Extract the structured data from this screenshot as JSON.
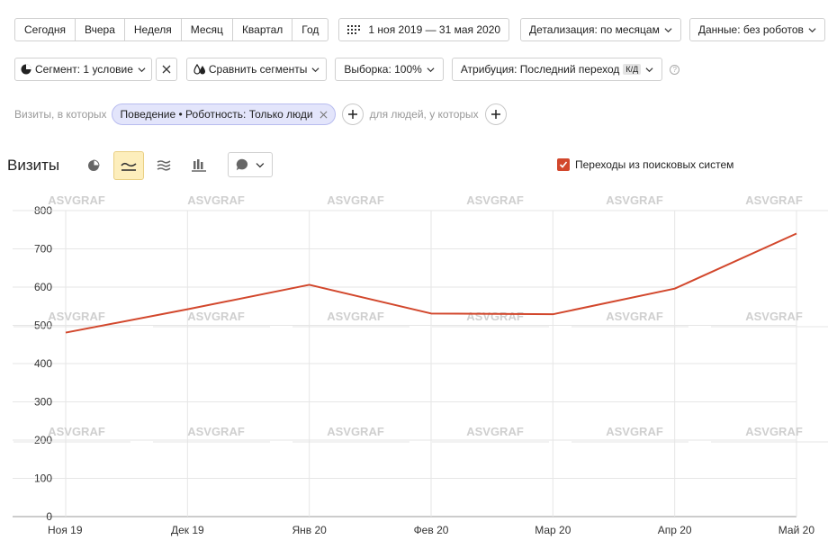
{
  "toolbar": {
    "periods": [
      "Сегодня",
      "Вчера",
      "Неделя",
      "Месяц",
      "Квартал",
      "Год"
    ],
    "date_range": "1 ноя 2019 — 31 мая 2020",
    "detail": "Детализация: по месяцам",
    "data_filter": "Данные: без роботов"
  },
  "toolbar2": {
    "segment": "Сегмент: 1 условие",
    "compare": "Сравнить сегменты",
    "sample": "Выборка: 100%",
    "attribution": "Атрибуция: Последний переход",
    "attribution_badge": "К/Д"
  },
  "filter": {
    "visits_label": "Визиты, в которых",
    "chip": "Поведение • Роботность: Только люди",
    "people_label": "для людей, у которых"
  },
  "chart_header": {
    "title": "Визиты",
    "legend": "Переходы из поисковых систем"
  },
  "watermark": "ASVGRAF",
  "colors": {
    "series": "#d2472c",
    "chip_bg": "#e3e5fb",
    "active_view": "#fdeebc"
  },
  "chart_data": {
    "type": "line",
    "categories": [
      "Ноя 19",
      "Дек 19",
      "Янв 20",
      "Фев 20",
      "Мар 20",
      "Апр 20",
      "Май 20"
    ],
    "series": [
      {
        "name": "Переходы из поисковых систем",
        "values": [
          481,
          542,
          606,
          531,
          529,
          596,
          740
        ]
      }
    ],
    "ylim": [
      0,
      800
    ],
    "yticks": [
      0,
      100,
      200,
      300,
      400,
      500,
      600,
      700,
      800
    ],
    "grid": true,
    "legend_position": "top-right"
  }
}
